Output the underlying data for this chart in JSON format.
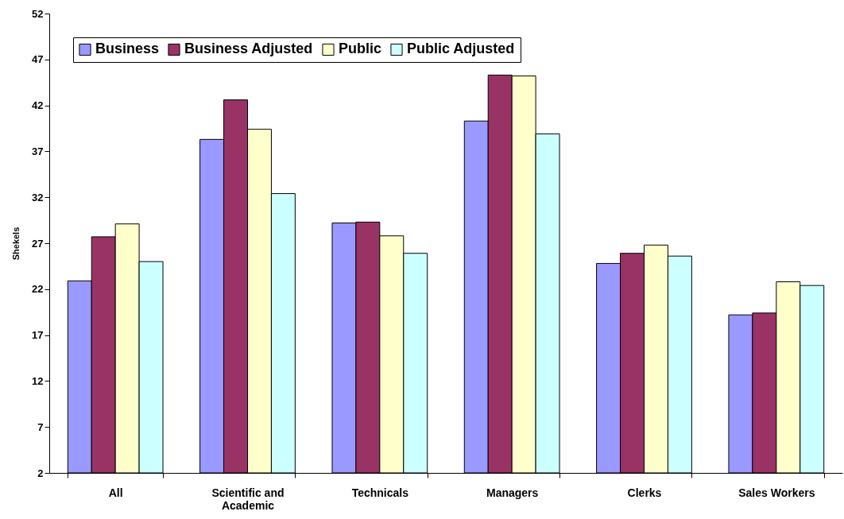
{
  "chart_data": {
    "type": "bar",
    "ylabel": "Shekels",
    "categories": [
      "All",
      "Scientific and Academic",
      "Technicals",
      "Managers",
      "Clerks",
      "Sales Workers"
    ],
    "series": [
      {
        "name": "Business",
        "color": "#9999ff",
        "values": [
          22.9,
          38.3,
          29.2,
          40.3,
          24.8,
          19.2
        ]
      },
      {
        "name": "Business Adjusted",
        "color": "#993366",
        "values": [
          27.7,
          42.6,
          29.3,
          45.3,
          25.9,
          19.4
        ]
      },
      {
        "name": "Public",
        "color": "#ffffcc",
        "values": [
          29.1,
          39.4,
          27.8,
          45.2,
          26.8,
          22.8
        ]
      },
      {
        "name": "Public Adjusted",
        "color": "#ccffff",
        "values": [
          25.0,
          32.4,
          25.9,
          38.9,
          25.6,
          22.4
        ]
      }
    ],
    "ylim": [
      2,
      52
    ],
    "yticks": [
      2,
      7,
      12,
      17,
      22,
      27,
      32,
      37,
      42,
      47,
      52
    ],
    "grid": false,
    "legend": "top left"
  }
}
